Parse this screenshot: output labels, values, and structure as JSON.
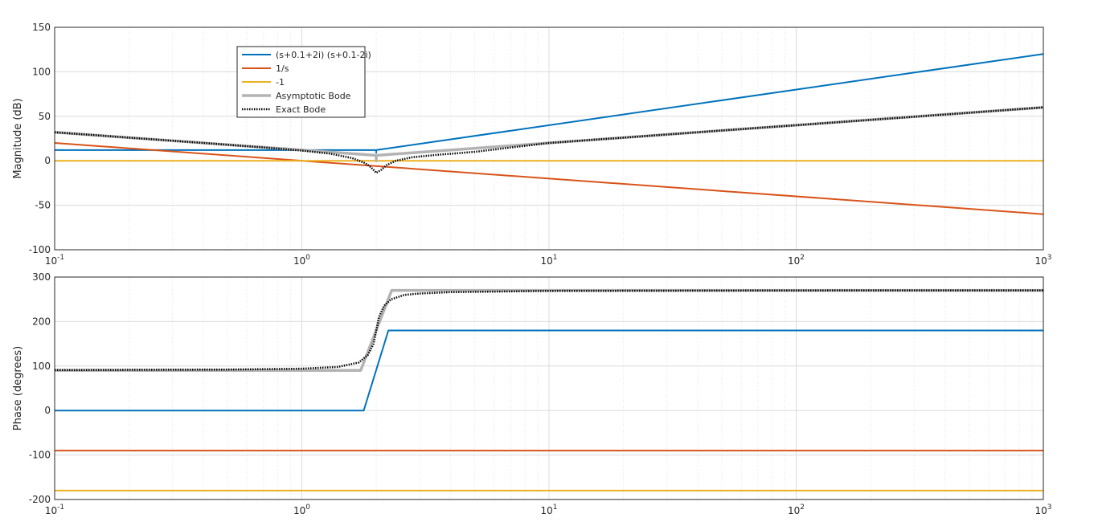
{
  "chart_data": [
    {
      "type": "line",
      "panel": "magnitude",
      "xscale": "log",
      "xlim": [
        0.1,
        1000
      ],
      "ylim": [
        -100,
        150
      ],
      "ylabel": "Magnitude (dB)",
      "grid": true,
      "yticks": [
        150,
        100,
        50,
        0,
        -50,
        -100
      ],
      "ytick_labels": [
        "150",
        "100",
        "50",
        "0",
        "-50",
        "-100"
      ],
      "xticks": [
        0.1,
        1,
        10,
        100,
        1000
      ],
      "xtick_labels": [
        {
          "base": "10",
          "exp": "-1"
        },
        {
          "base": "10",
          "exp": "0"
        },
        {
          "base": "10",
          "exp": "1"
        },
        {
          "base": "10",
          "exp": "2"
        },
        {
          "base": "10",
          "exp": "3"
        }
      ],
      "legend": {
        "placement": "upper-left-center",
        "entries": [
          {
            "label": "(s+0.1+2i) (s+0.1-2i)",
            "color": "#0072BD",
            "style": "solid"
          },
          {
            "label": "1/s",
            "color": "#D95319",
            "style": "solid"
          },
          {
            "label": "-1",
            "color": "#EDB120",
            "style": "solid"
          },
          {
            "label": "Asymptotic Bode",
            "color": "#B3B3B3",
            "style": "solid-thick"
          },
          {
            "label": "Exact Bode",
            "color": "#000000",
            "style": "dotted"
          }
        ]
      },
      "series": [
        {
          "name": "(s+0.1+2i) (s+0.1-2i)",
          "color": "#0072BD",
          "x": [
            0.1,
            2,
            2,
            2,
            1000
          ],
          "y": [
            12.04,
            12.04,
            9,
            12.04,
            120
          ]
        },
        {
          "name": "1/s",
          "color": "#D95319",
          "x": [
            0.1,
            1000
          ],
          "y": [
            20,
            -60
          ]
        },
        {
          "name": "-1",
          "color": "#EDB120",
          "x": [
            0.1,
            1000
          ],
          "y": [
            0,
            0
          ]
        },
        {
          "name": "Asymptotic Bode",
          "color": "#B3B3B3",
          "x": [
            0.1,
            2,
            2,
            2,
            1000
          ],
          "y": [
            32.04,
            6.02,
            0,
            6.02,
            60
          ]
        },
        {
          "name": "Exact Bode",
          "color": "#000000",
          "x": [
            0.1,
            0.2,
            0.4,
            0.7,
            1.0,
            1.3,
            1.6,
            1.8,
            1.9,
            2.0,
            2.1,
            2.2,
            2.4,
            2.8,
            3.5,
            5,
            10,
            20,
            50,
            100,
            300,
            1000
          ],
          "y": [
            32,
            26,
            20,
            15,
            11.5,
            8,
            3,
            -2.5,
            -7,
            -13.5,
            -10,
            -5,
            0,
            4,
            6.6,
            10,
            20,
            26,
            34,
            40,
            49.5,
            60
          ]
        }
      ]
    },
    {
      "type": "line",
      "panel": "phase",
      "xscale": "log",
      "xlim": [
        0.1,
        1000
      ],
      "ylim": [
        -200,
        300
      ],
      "ylabel": "Phase (degrees)",
      "grid": true,
      "yticks": [
        300,
        200,
        100,
        0,
        -100,
        -200
      ],
      "ytick_labels": [
        "300",
        "200",
        "100",
        "0",
        "-100",
        "-200"
      ],
      "xticks": [
        0.1,
        1,
        10,
        100,
        1000
      ],
      "xtick_labels": [
        {
          "base": "10",
          "exp": "-1"
        },
        {
          "base": "10",
          "exp": "0"
        },
        {
          "base": "10",
          "exp": "1"
        },
        {
          "base": "10",
          "exp": "2"
        },
        {
          "base": "10",
          "exp": "3"
        }
      ],
      "series": [
        {
          "name": "(s+0.1+2i) (s+0.1-2i)",
          "color": "#0072BD",
          "x": [
            0.1,
            1.78,
            2.24,
            1000
          ],
          "y": [
            0,
            0,
            180,
            180
          ]
        },
        {
          "name": "1/s",
          "color": "#D95319",
          "x": [
            0.1,
            1000
          ],
          "y": [
            -90,
            -90
          ]
        },
        {
          "name": "-1",
          "color": "#EDB120",
          "x": [
            0.1,
            1000
          ],
          "y": [
            -180,
            -180
          ]
        },
        {
          "name": "Asymptotic Bode",
          "color": "#B3B3B3",
          "x": [
            0.1,
            1.73,
            2.31,
            1000
          ],
          "y": [
            90,
            90,
            270,
            270
          ]
        },
        {
          "name": "Exact Bode",
          "color": "#000000",
          "x": [
            0.1,
            0.5,
            1.0,
            1.4,
            1.7,
            1.85,
            1.95,
            2.0,
            2.05,
            2.15,
            2.3,
            2.6,
            3.0,
            4.0,
            10,
            100,
            1000
          ],
          "y": [
            91,
            92,
            94,
            98,
            108,
            125,
            150,
            180,
            210,
            235,
            250,
            260,
            263,
            266,
            268.9,
            269.9,
            270
          ]
        }
      ]
    }
  ]
}
